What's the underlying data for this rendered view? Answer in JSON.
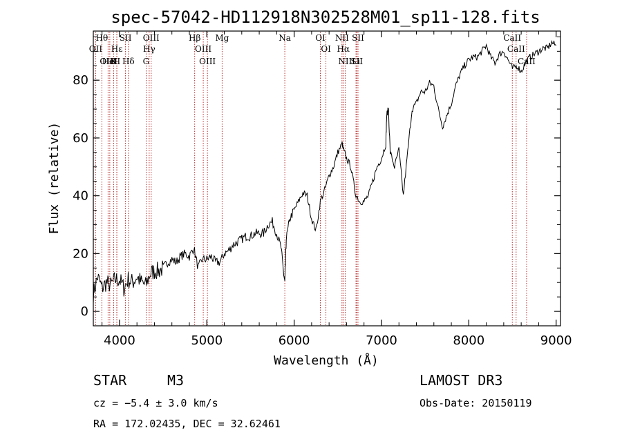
{
  "chart_data": {
    "type": "line",
    "title": "spec-57042-HD112918N302528M01_sp11-128.fits",
    "xlabel": "Wavelength (Å)",
    "ylabel": "Flux (relative)",
    "xlim": [
      3700,
      9050
    ],
    "ylim": [
      -5,
      97
    ],
    "xticks": [
      4000,
      5000,
      6000,
      7000,
      8000,
      9000
    ],
    "yticks": [
      0,
      20,
      40,
      60,
      80
    ],
    "line_color": "#000000",
    "marker_color": "#b01818",
    "series": [
      {
        "name": "flux",
        "x": [
          3700,
          3750,
          3800,
          3850,
          3900,
          3950,
          4000,
          4050,
          4100,
          4150,
          4200,
          4250,
          4300,
          4350,
          4400,
          4450,
          4500,
          4550,
          4600,
          4650,
          4700,
          4750,
          4800,
          4850,
          4900,
          4950,
          5000,
          5050,
          5100,
          5150,
          5200,
          5250,
          5300,
          5350,
          5400,
          5450,
          5500,
          5550,
          5600,
          5650,
          5700,
          5750,
          5800,
          5850,
          5880,
          5893,
          5900,
          5910,
          5950,
          6000,
          6050,
          6100,
          6150,
          6200,
          6250,
          6300,
          6350,
          6400,
          6450,
          6500,
          6550,
          6563,
          6600,
          6650,
          6700,
          6750,
          6800,
          6850,
          6900,
          6950,
          7000,
          7050,
          7060,
          7080,
          7100,
          7150,
          7200,
          7250,
          7300,
          7350,
          7400,
          7450,
          7500,
          7550,
          7600,
          7650,
          7700,
          7750,
          7800,
          7850,
          7900,
          7950,
          8000,
          8050,
          8100,
          8150,
          8200,
          8250,
          8300,
          8350,
          8400,
          8450,
          8500,
          8550,
          8600,
          8650,
          8700,
          8750,
          8800,
          8850,
          8900,
          8950,
          9000
        ],
        "y": [
          6,
          12,
          8,
          10,
          9,
          11,
          11,
          8,
          11,
          10,
          12,
          10,
          9,
          13,
          14,
          14,
          15,
          17,
          18,
          17,
          19,
          20,
          19,
          22,
          15,
          18,
          18,
          19,
          17,
          17,
          20,
          21,
          23,
          24,
          25,
          26,
          26,
          27,
          27,
          27,
          30,
          31,
          27,
          22,
          13,
          10,
          16,
          25,
          32,
          35,
          38,
          41,
          40,
          32,
          28,
          38,
          42,
          47,
          50,
          55,
          58,
          56,
          53,
          50,
          41,
          38,
          38,
          40,
          45,
          50,
          53,
          58,
          68,
          70,
          55,
          50,
          56,
          40,
          55,
          70,
          72,
          76,
          76,
          79,
          78,
          70,
          64,
          68,
          72,
          78,
          82,
          85,
          87,
          88,
          88,
          90,
          92,
          88,
          86,
          89,
          90,
          87,
          84,
          85,
          83,
          86,
          88,
          89,
          90,
          91,
          91,
          93,
          92
        ]
      }
    ],
    "lines": [
      {
        "name": "Hθ",
        "wl": 3798
      },
      {
        "name": "OII",
        "wl": 3727
      },
      {
        "name": "OIII",
        "wl": 3869
      },
      {
        "name": "HeI",
        "wl": 3889
      },
      {
        "name": "Hε",
        "wl": 3970
      },
      {
        "name": "K",
        "wl": 3934
      },
      {
        "name": "H",
        "wl": 3969
      },
      {
        "name": "SII",
        "wl": 4069
      },
      {
        "name": "Hδ",
        "wl": 4102
      },
      {
        "name": "OIII",
        "wl": 4363
      },
      {
        "name": "Hγ",
        "wl": 4340
      },
      {
        "name": "G",
        "wl": 4305
      },
      {
        "name": "Hβ",
        "wl": 4861
      },
      {
        "name": "OIII",
        "wl": 4959
      },
      {
        "name": "OIII",
        "wl": 5007
      },
      {
        "name": "Mg",
        "wl": 5175
      },
      {
        "name": "Na",
        "wl": 5893
      },
      {
        "name": "OI",
        "wl": 6300
      },
      {
        "name": "OI",
        "wl": 6364
      },
      {
        "name": "NII",
        "wl": 6548
      },
      {
        "name": "Hα",
        "wl": 6563
      },
      {
        "name": "NII",
        "wl": 6584
      },
      {
        "name": "SII",
        "wl": 6717
      },
      {
        "name": "Li",
        "wl": 6708
      },
      {
        "name": "SII",
        "wl": 6731
      },
      {
        "name": "CaII",
        "wl": 8498
      },
      {
        "name": "CaII",
        "wl": 8542
      },
      {
        "name": "CaII",
        "wl": 8662
      }
    ]
  },
  "info": {
    "object_class": "STAR",
    "subclass": "M3",
    "survey": "LAMOST DR3",
    "cz": "cz = −5.4 ± 3.0 km/s",
    "obs_date": "Obs-Date: 20150119",
    "coords": "RA = 172.02435, DEC =  32.62461"
  }
}
